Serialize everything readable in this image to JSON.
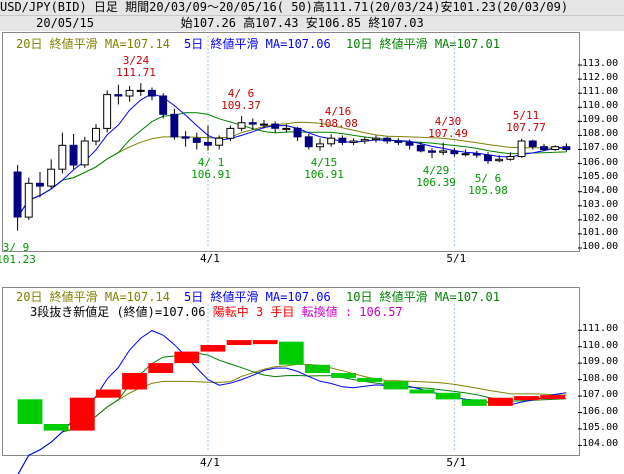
{
  "header": {
    "line1": "USD/JPY(BID) 日足 期間20/03/09～20/05/16( 50)高111.71(20/03/24)安101.23(20/03/09)",
    "line2": "     20/05/15            始107.26 高107.43 安106.85 終107.03"
  },
  "top_panel": {
    "legend": {
      "ma20": "20日 終値平滑 MA=107.14",
      "ma5": "5日 終値平滑 MA=107.06",
      "ma10": "10日 終値平滑 MA=107.01"
    },
    "y_ticks": [
      "113.00",
      "112.00",
      "111.00",
      "110.00",
      "109.00",
      "108.00",
      "107.00",
      "106.00",
      "105.00",
      "104.00",
      "103.00",
      "102.00",
      "101.00",
      "100.00"
    ],
    "x_ticks": [
      "4/1",
      "5/1"
    ],
    "annotations": [
      {
        "date": "3/24",
        "value": "111.71",
        "color": "red"
      },
      {
        "date": "4/ 6",
        "value": "109.37",
        "color": "red"
      },
      {
        "date": "4/16",
        "value": "108.08",
        "color": "red"
      },
      {
        "date": "4/30",
        "value": "107.49",
        "color": "red"
      },
      {
        "date": "5/11",
        "value": "107.77",
        "color": "red"
      },
      {
        "date": "3/ 9",
        "value": "101.23",
        "color": "green"
      },
      {
        "date": "4/ 1",
        "value": "106.91",
        "color": "green"
      },
      {
        "date": "4/15",
        "value": "106.91",
        "color": "green"
      },
      {
        "date": "4/29",
        "value": "106.39",
        "color": "green"
      },
      {
        "date": "5/ 6",
        "value": "105.98",
        "color": "green"
      }
    ]
  },
  "bottom_panel": {
    "legend": {
      "ma20": "20日 終値平滑 MA=107.14",
      "ma5": "5日 終値平滑 MA=107.06",
      "ma10": "10日 終値平滑 MA=107.01"
    },
    "line2_prefix": "3段抜き新値足 (終値)=107.06 ",
    "line2_state": "陽転中",
    "line2_count": " 3 手目 ",
    "line2_reversal": "転換値 : 106.57",
    "y_ticks": [
      "111.00",
      "110.00",
      "109.00",
      "108.00",
      "107.00",
      "106.00",
      "105.00",
      "104.00"
    ],
    "x_ticks": [
      "4/1",
      "5/1"
    ]
  },
  "colors": {
    "up_candle": "#ffffff",
    "down_candle": "#000080",
    "ma20": "#808000",
    "ma5": "#0000ff",
    "ma10": "#008000",
    "kagi_up": "#ff0000",
    "kagi_down": "#00cc00"
  },
  "chart_data": [
    {
      "type": "candlestick",
      "title": "USD/JPY(BID) 日足",
      "ylim": [
        100.0,
        113.5
      ],
      "x": [
        "3/9",
        "3/10",
        "3/11",
        "3/12",
        "3/13",
        "3/16",
        "3/17",
        "3/18",
        "3/19",
        "3/20",
        "3/23",
        "3/24",
        "3/25",
        "3/26",
        "3/27",
        "3/30",
        "3/31",
        "4/1",
        "4/2",
        "4/3",
        "4/6",
        "4/7",
        "4/8",
        "4/9",
        "4/10",
        "4/13",
        "4/14",
        "4/15",
        "4/16",
        "4/17",
        "4/20",
        "4/21",
        "4/22",
        "4/23",
        "4/24",
        "4/27",
        "4/28",
        "4/29",
        "4/30",
        "5/1",
        "5/4",
        "5/5",
        "5/6",
        "5/7",
        "5/8",
        "5/11",
        "5/12",
        "5/13",
        "5/14",
        "5/15"
      ],
      "open": [
        105.4,
        102.2,
        104.6,
        104.4,
        105.6,
        107.3,
        105.9,
        107.6,
        108.5,
        110.9,
        110.8,
        111.2,
        111.2,
        110.8,
        109.5,
        107.9,
        107.8,
        107.5,
        107.3,
        107.8,
        108.5,
        108.9,
        108.8,
        108.8,
        108.5,
        108.5,
        107.9,
        107.2,
        107.4,
        107.8,
        107.5,
        107.6,
        107.7,
        107.8,
        107.6,
        107.5,
        107.3,
        106.9,
        106.8,
        106.9,
        106.7,
        106.7,
        106.6,
        106.2,
        106.3,
        106.5,
        107.6,
        107.2,
        107.0,
        107.2
      ],
      "close": [
        102.2,
        104.6,
        104.4,
        105.6,
        107.3,
        105.9,
        107.6,
        108.5,
        110.9,
        110.8,
        111.2,
        111.2,
        110.8,
        109.5,
        107.9,
        107.8,
        107.5,
        107.3,
        107.8,
        108.5,
        108.9,
        108.8,
        108.8,
        108.5,
        108.5,
        107.9,
        107.2,
        107.4,
        107.8,
        107.5,
        107.6,
        107.7,
        107.8,
        107.6,
        107.5,
        107.3,
        106.9,
        106.8,
        106.9,
        106.7,
        106.7,
        106.6,
        106.2,
        106.3,
        106.5,
        107.6,
        107.2,
        107.0,
        107.2,
        107.0
      ],
      "high": [
        105.9,
        105.0,
        105.4,
        106.3,
        108.2,
        108.1,
        107.9,
        108.8,
        111.2,
        111.6,
        111.5,
        111.71,
        111.4,
        111.0,
        109.9,
        108.3,
        108.2,
        108.7,
        108.0,
        108.7,
        109.37,
        109.2,
        109.1,
        109.0,
        108.8,
        108.6,
        108.1,
        107.8,
        108.08,
        108.0,
        107.8,
        107.9,
        108.0,
        107.9,
        107.8,
        107.7,
        107.5,
        107.1,
        107.49,
        107.1,
        107.0,
        106.9,
        106.8,
        106.6,
        106.8,
        107.77,
        107.7,
        107.4,
        107.3,
        107.43
      ],
      "low": [
        101.23,
        102.0,
        103.6,
        104.2,
        105.3,
        105.6,
        105.7,
        107.3,
        108.2,
        110.2,
        110.4,
        110.8,
        110.5,
        109.2,
        107.7,
        107.2,
        107.0,
        106.91,
        107.0,
        107.6,
        108.3,
        108.4,
        108.5,
        108.2,
        108.2,
        107.6,
        107.0,
        106.91,
        107.2,
        107.3,
        107.3,
        107.4,
        107.5,
        107.4,
        107.3,
        107.0,
        106.8,
        106.39,
        106.6,
        106.5,
        106.5,
        106.4,
        105.98,
        106.1,
        106.2,
        106.4,
        107.0,
        106.9,
        106.9,
        106.85
      ],
      "ma20_last": 107.14,
      "ma5_last": 107.06,
      "ma10_last": 107.01
    },
    {
      "type": "bar",
      "title": "3段抜き新値足 (終値)",
      "ylim": [
        103.5,
        111.5
      ],
      "bricks": [
        {
          "dir": "down",
          "from": 106.8,
          "to": 105.3
        },
        {
          "dir": "down",
          "from": 105.3,
          "to": 104.9
        },
        {
          "dir": "up",
          "from": 104.9,
          "to": 106.9
        },
        {
          "dir": "up",
          "from": 106.9,
          "to": 107.4
        },
        {
          "dir": "up",
          "from": 107.4,
          "to": 108.4
        },
        {
          "dir": "up",
          "from": 108.4,
          "to": 109.0
        },
        {
          "dir": "up",
          "from": 109.0,
          "to": 109.7
        },
        {
          "dir": "up",
          "from": 109.7,
          "to": 110.1
        },
        {
          "dir": "up",
          "from": 110.1,
          "to": 110.4
        },
        {
          "dir": "up",
          "from": 110.4,
          "to": 110.3
        },
        {
          "dir": "down",
          "from": 110.3,
          "to": 108.9
        },
        {
          "dir": "down",
          "from": 108.9,
          "to": 108.4
        },
        {
          "dir": "down",
          "from": 108.4,
          "to": 108.1
        },
        {
          "dir": "down",
          "from": 108.1,
          "to": 107.9
        },
        {
          "dir": "down",
          "from": 107.9,
          "to": 107.4
        },
        {
          "dir": "down",
          "from": 107.4,
          "to": 107.2
        },
        {
          "dir": "down",
          "from": 107.2,
          "to": 106.8
        },
        {
          "dir": "down",
          "from": 106.8,
          "to": 106.4
        },
        {
          "dir": "up",
          "from": 106.4,
          "to": 106.9
        },
        {
          "dir": "up",
          "from": 106.9,
          "to": 107.0
        },
        {
          "dir": "up",
          "from": 107.0,
          "to": 107.06
        }
      ]
    }
  ]
}
